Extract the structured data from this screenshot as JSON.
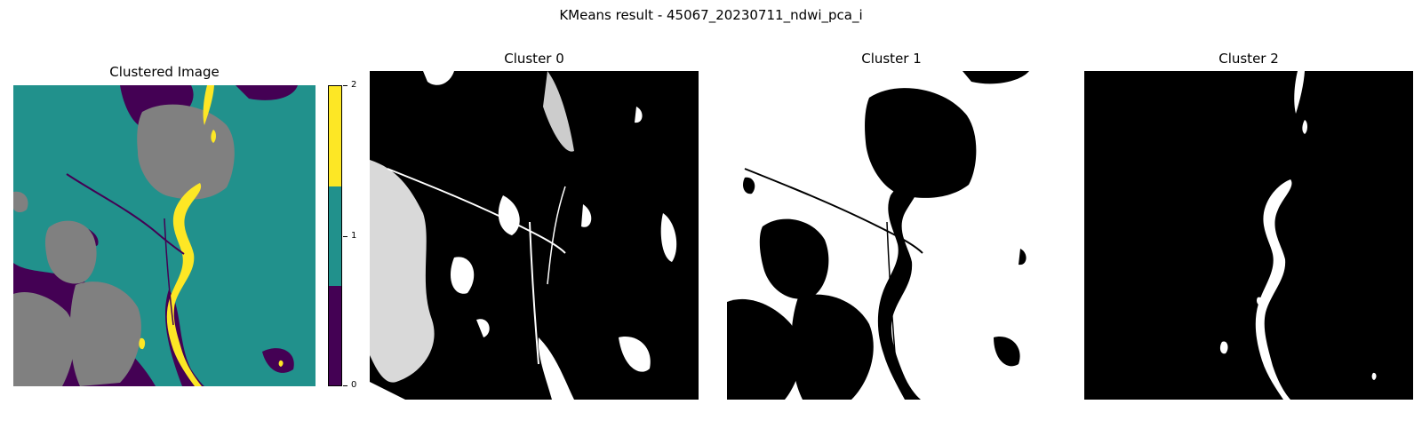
{
  "figure": {
    "suptitle": "KMeans result - 45067_20230711_ndwi_pca_i"
  },
  "panels": [
    {
      "title": "Clustered Image",
      "icon": "clustered-image"
    },
    {
      "title": "Cluster 0",
      "icon": "cluster-0-mask"
    },
    {
      "title": "Cluster 1",
      "icon": "cluster-1-mask"
    },
    {
      "title": "Cluster 2",
      "icon": "cluster-2-mask"
    }
  ],
  "colorbar": {
    "ticks": [
      "0",
      "1",
      "2"
    ],
    "colors": {
      "cluster_0": "#440154",
      "cluster_1": "#21918c",
      "cluster_2": "#fde725",
      "masked": "#808080"
    }
  }
}
